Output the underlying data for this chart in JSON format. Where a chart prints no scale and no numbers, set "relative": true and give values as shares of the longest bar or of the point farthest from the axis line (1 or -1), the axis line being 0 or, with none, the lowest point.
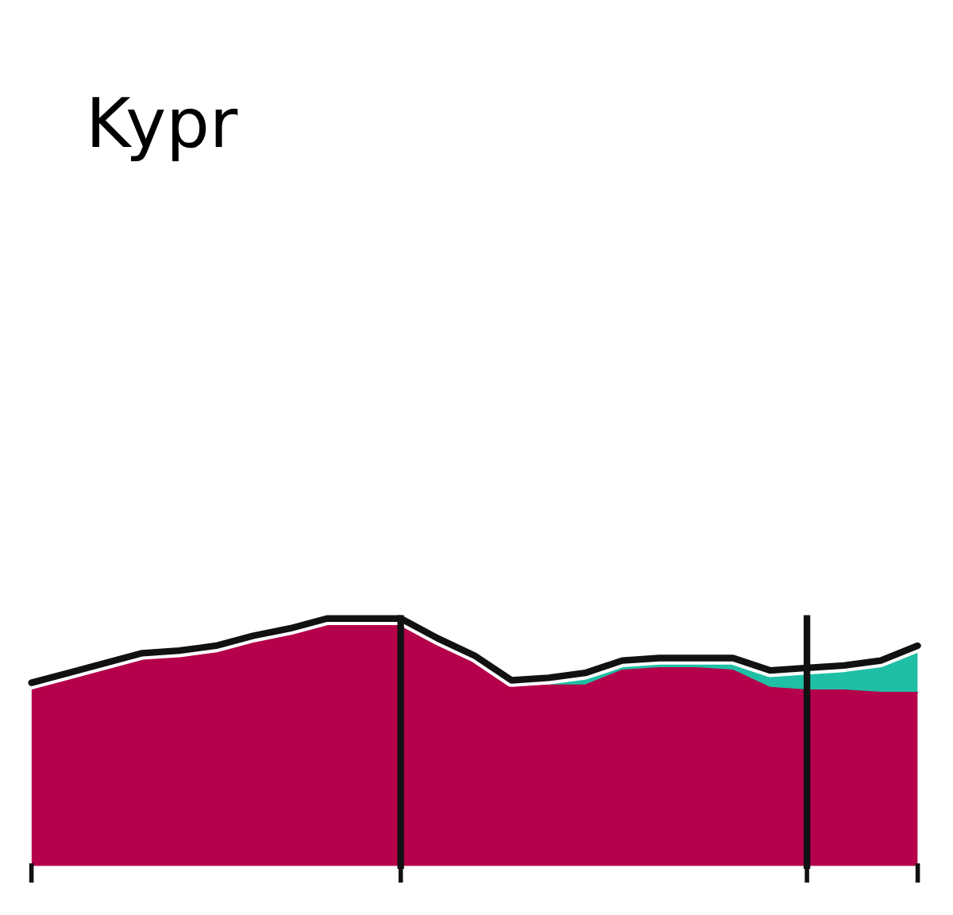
{
  "chart_data": {
    "type": "area",
    "title": "Kypr",
    "relative": true,
    "stacked": true,
    "categories": [
      null,
      null,
      null,
      null,
      null,
      null,
      null,
      null,
      null,
      null,
      null,
      null,
      null,
      null,
      null,
      null,
      null,
      null,
      null,
      null,
      null,
      null,
      null,
      null,
      null
    ],
    "series": [
      {
        "color": "#b5004b",
        "values": [
          0.74,
          0.78,
          0.82,
          0.86,
          0.87,
          0.89,
          0.93,
          0.96,
          1.0,
          1.0,
          1.0,
          0.92,
          0.84,
          0.73,
          0.73,
          0.73,
          0.79,
          0.8,
          0.8,
          0.79,
          0.72,
          0.71,
          0.71,
          0.7,
          0.7
        ]
      },
      {
        "color": "#1fbfa5",
        "values": [
          0,
          0,
          0,
          0,
          0,
          0,
          0,
          0,
          0,
          0,
          0,
          0,
          0.01,
          0.02,
          0.03,
          0.05,
          0.04,
          0.04,
          0.04,
          0.05,
          0.07,
          0.09,
          0.1,
          0.13,
          0.19
        ]
      }
    ]
  }
}
